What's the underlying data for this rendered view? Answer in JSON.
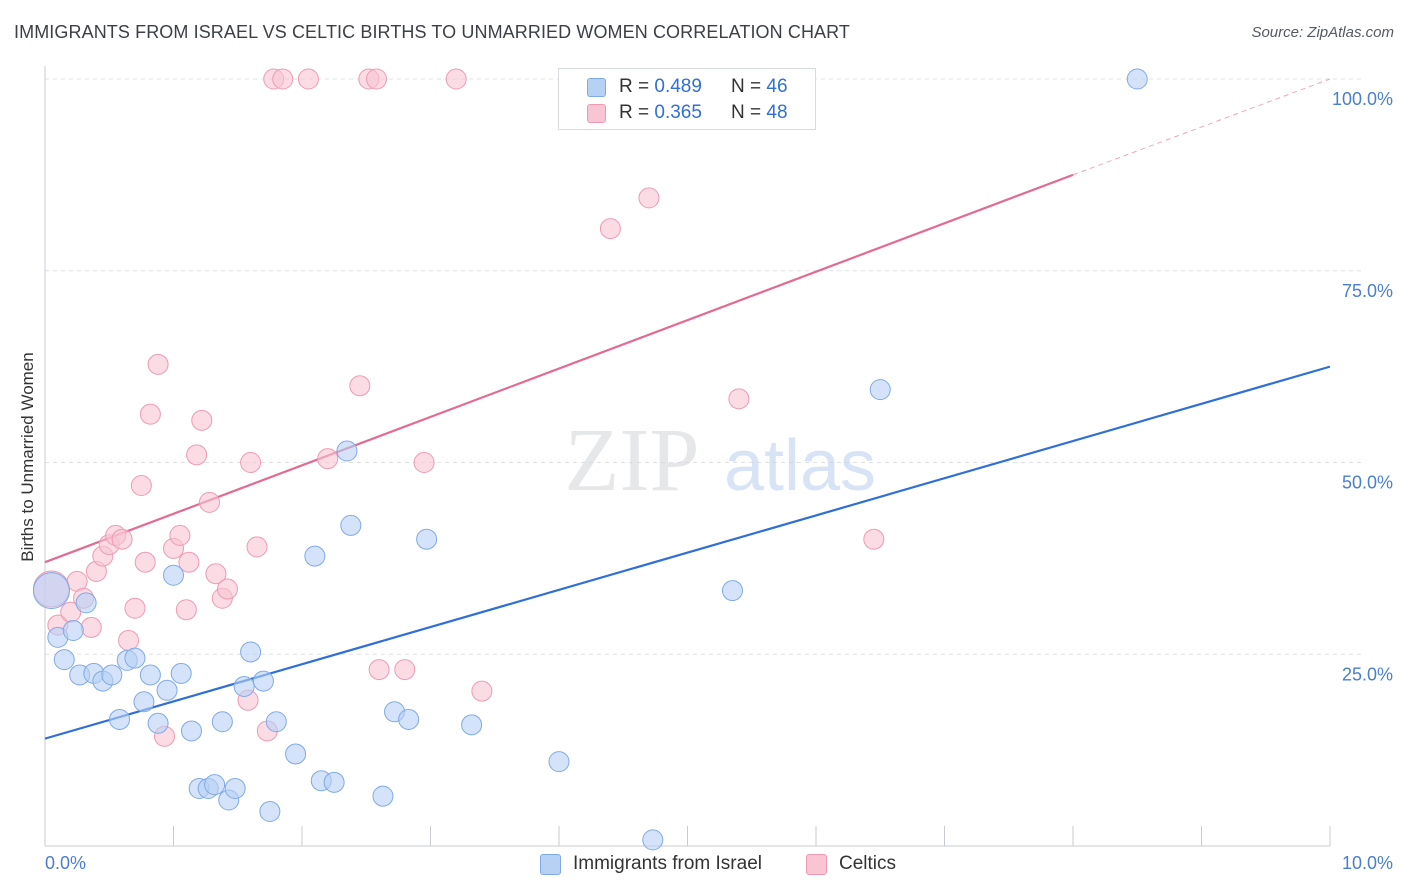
{
  "header": {
    "title": "IMMIGRANTS FROM ISRAEL VS CELTIC BIRTHS TO UNMARRIED WOMEN CORRELATION CHART",
    "source": "Source: ZipAtlas.com"
  },
  "watermark": {
    "zip": "ZIP",
    "atlas": "atlas"
  },
  "legend_top": {
    "rows": [
      {
        "r_label": "R = ",
        "r_value": "0.489",
        "n_label": "N = ",
        "n_value": "46"
      },
      {
        "r_label": "R = ",
        "r_value": "0.365",
        "n_label": "N = ",
        "n_value": "48"
      }
    ]
  },
  "legend_bottom": {
    "israel": "Immigrants from Israel",
    "celtics": "Celtics"
  },
  "colors": {
    "israel_fill": "#b7d1f5",
    "israel_stroke": "#7faae6",
    "israel_line": "#2f6fd6",
    "celtics_fill": "#f9c5d4",
    "celtics_stroke": "#ee9ab3",
    "celtics_line": "#e26b93",
    "axis_text": "#4a7fcf",
    "grid": "#dfe1e6"
  },
  "chart_data": {
    "type": "scatter",
    "title": "IMMIGRANTS FROM ISRAEL VS CELTIC BIRTHS TO UNMARRIED WOMEN CORRELATION CHART",
    "xlabel": "",
    "ylabel": "Births to Unmarried Women",
    "xlim": [
      0,
      10
    ],
    "ylim": [
      0,
      100
    ],
    "x_tick_labels": [
      "0.0%",
      "10.0%"
    ],
    "y_ticks": [
      25,
      50,
      75,
      100
    ],
    "y_tick_labels": [
      "25.0%",
      "50.0%",
      "75.0%",
      "100.0%"
    ],
    "grid": true,
    "legend_position": "top-center",
    "series": [
      {
        "name": "Immigrants from Israel",
        "r": 0.489,
        "n": 46,
        "trend": {
          "x0": 0,
          "y0": 14,
          "x1": 10,
          "y1": 62.5
        },
        "points": [
          [
            0.05,
            33.3,
            18
          ],
          [
            0.1,
            27.2,
            10
          ],
          [
            0.15,
            24.3,
            10
          ],
          [
            0.22,
            28.1,
            10
          ],
          [
            0.27,
            22.3,
            10
          ],
          [
            0.32,
            31.7,
            10
          ],
          [
            0.38,
            22.5,
            10
          ],
          [
            0.45,
            21.5,
            10
          ],
          [
            0.52,
            22.3,
            10
          ],
          [
            0.58,
            16.5,
            10
          ],
          [
            0.64,
            24.2,
            10
          ],
          [
            0.7,
            24.5,
            10
          ],
          [
            0.77,
            18.8,
            10
          ],
          [
            0.82,
            22.3,
            10
          ],
          [
            0.88,
            16.0,
            10
          ],
          [
            0.95,
            20.3,
            10
          ],
          [
            1.0,
            35.3,
            10
          ],
          [
            1.06,
            22.5,
            10
          ],
          [
            1.14,
            15.0,
            10
          ],
          [
            1.2,
            7.5,
            10
          ],
          [
            1.27,
            7.5,
            10
          ],
          [
            1.32,
            8.0,
            10
          ],
          [
            1.38,
            16.2,
            10
          ],
          [
            1.43,
            6.0,
            10
          ],
          [
            1.48,
            7.5,
            10
          ],
          [
            1.55,
            20.8,
            10
          ],
          [
            1.6,
            25.3,
            10
          ],
          [
            1.7,
            21.5,
            10
          ],
          [
            1.8,
            16.2,
            10
          ],
          [
            1.75,
            4.5,
            10
          ],
          [
            1.95,
            12.0,
            10
          ],
          [
            2.1,
            37.8,
            10
          ],
          [
            2.15,
            8.5,
            10
          ],
          [
            2.25,
            8.3,
            10
          ],
          [
            2.35,
            51.5,
            10
          ],
          [
            2.38,
            41.8,
            10
          ],
          [
            2.63,
            6.5,
            10
          ],
          [
            2.72,
            17.5,
            10
          ],
          [
            2.83,
            16.5,
            10
          ],
          [
            2.97,
            40.0,
            10
          ],
          [
            3.32,
            15.8,
            10
          ],
          [
            4.0,
            11.0,
            10
          ],
          [
            4.73,
            0.8,
            10
          ],
          [
            5.35,
            33.3,
            10
          ],
          [
            6.5,
            59.5,
            10
          ],
          [
            8.5,
            100,
            10
          ]
        ]
      },
      {
        "name": "Celtics",
        "r": 0.365,
        "n": 48,
        "trend": {
          "x0": 0,
          "y0": 37,
          "x1": 8,
          "y1": 87.5
        },
        "trend_extension": {
          "x0": 8,
          "y0": 87.5,
          "x1": 10,
          "y1": 100
        },
        "points": [
          [
            0.05,
            33.5,
            18
          ],
          [
            0.1,
            28.8,
            10
          ],
          [
            0.2,
            30.5,
            10
          ],
          [
            0.25,
            34.5,
            10
          ],
          [
            0.3,
            32.3,
            10
          ],
          [
            0.36,
            28.5,
            10
          ],
          [
            0.4,
            35.8,
            10
          ],
          [
            0.45,
            37.8,
            10
          ],
          [
            0.5,
            39.3,
            10
          ],
          [
            0.55,
            40.5,
            10
          ],
          [
            0.6,
            40.0,
            10
          ],
          [
            0.65,
            26.8,
            10
          ],
          [
            0.7,
            31.0,
            10
          ],
          [
            0.75,
            47.0,
            10
          ],
          [
            0.78,
            37.0,
            10
          ],
          [
            0.82,
            56.3,
            10
          ],
          [
            0.88,
            62.8,
            10
          ],
          [
            0.93,
            14.3,
            10
          ],
          [
            1.0,
            38.8,
            10
          ],
          [
            1.05,
            40.5,
            10
          ],
          [
            1.1,
            30.8,
            10
          ],
          [
            1.12,
            37.0,
            10
          ],
          [
            1.18,
            51.0,
            10
          ],
          [
            1.22,
            55.5,
            10
          ],
          [
            1.28,
            44.8,
            10
          ],
          [
            1.33,
            35.5,
            10
          ],
          [
            1.38,
            32.3,
            10
          ],
          [
            1.42,
            33.5,
            10
          ],
          [
            1.58,
            19.0,
            10
          ],
          [
            1.6,
            50.0,
            10
          ],
          [
            1.65,
            39.0,
            10
          ],
          [
            1.73,
            15.0,
            10
          ],
          [
            1.78,
            100,
            10
          ],
          [
            1.85,
            100,
            10
          ],
          [
            2.05,
            100,
            10
          ],
          [
            2.2,
            50.5,
            10
          ],
          [
            2.45,
            60.0,
            10
          ],
          [
            2.52,
            100,
            10
          ],
          [
            2.58,
            100,
            10
          ],
          [
            2.6,
            23.0,
            10
          ],
          [
            2.8,
            23.0,
            10
          ],
          [
            2.95,
            50.0,
            10
          ],
          [
            3.2,
            100,
            10
          ],
          [
            3.4,
            20.2,
            10
          ],
          [
            4.4,
            80.5,
            10
          ],
          [
            4.7,
            84.5,
            10
          ],
          [
            5.4,
            58.3,
            10
          ],
          [
            6.45,
            40.0,
            10
          ]
        ]
      }
    ]
  }
}
